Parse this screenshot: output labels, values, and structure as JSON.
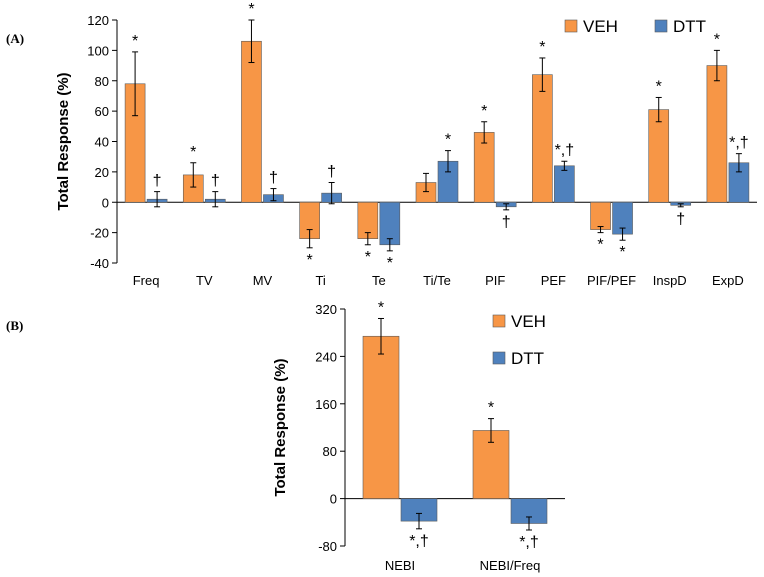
{
  "colors": {
    "veh": "#f79646",
    "dtt": "#4f81bd",
    "edge": "#5a5a5a"
  },
  "chart_data": [
    {
      "panel": "(A)",
      "type": "bar",
      "ylabel": "Total Response (%)",
      "ylim": [
        -40,
        120
      ],
      "yticks": [
        -40,
        -20,
        0,
        20,
        40,
        60,
        80,
        100,
        120
      ],
      "legend_position": "top-right",
      "categories": [
        "Freq",
        "TV",
        "MV",
        "Ti",
        "Te",
        "Ti/Te",
        "PIF",
        "PEF",
        "PIF/PEF",
        "InspD",
        "ExpD"
      ],
      "series": [
        {
          "name": "VEH",
          "values": [
            78,
            18,
            106,
            -24,
            -24,
            13,
            46,
            84,
            -18,
            61,
            90
          ],
          "errors": [
            21,
            8,
            14,
            6,
            4,
            6,
            7,
            11,
            2,
            8,
            10
          ],
          "annotations": [
            "*",
            "*",
            "*",
            "*",
            "*",
            "",
            "*",
            "*",
            "*",
            "*",
            "*"
          ]
        },
        {
          "name": "DTT",
          "values": [
            2,
            2,
            5,
            6,
            -28,
            27,
            -3,
            24,
            -21,
            -2,
            26
          ],
          "errors": [
            5,
            5,
            4,
            7,
            4,
            7,
            2,
            3,
            4,
            1,
            6
          ],
          "annotations": [
            "†",
            "†",
            "†",
            "†",
            "*",
            "*",
            "†",
            "*,†",
            "*",
            "†",
            "*,†"
          ]
        }
      ]
    },
    {
      "panel": "(B)",
      "type": "bar",
      "ylabel": "Total Response (%)",
      "ylim": [
        -80,
        320
      ],
      "yticks": [
        -80,
        0,
        80,
        160,
        240,
        320
      ],
      "legend_position": "top-right",
      "categories": [
        "NEBI",
        "NEBI/Freq"
      ],
      "series": [
        {
          "name": "VEH",
          "values": [
            274,
            115
          ],
          "errors": [
            30,
            20
          ],
          "annotations": [
            "*",
            "*"
          ]
        },
        {
          "name": "DTT",
          "values": [
            -38,
            -42
          ],
          "errors": [
            13,
            11
          ],
          "annotations": [
            "*,†",
            "*,†"
          ]
        }
      ]
    }
  ]
}
